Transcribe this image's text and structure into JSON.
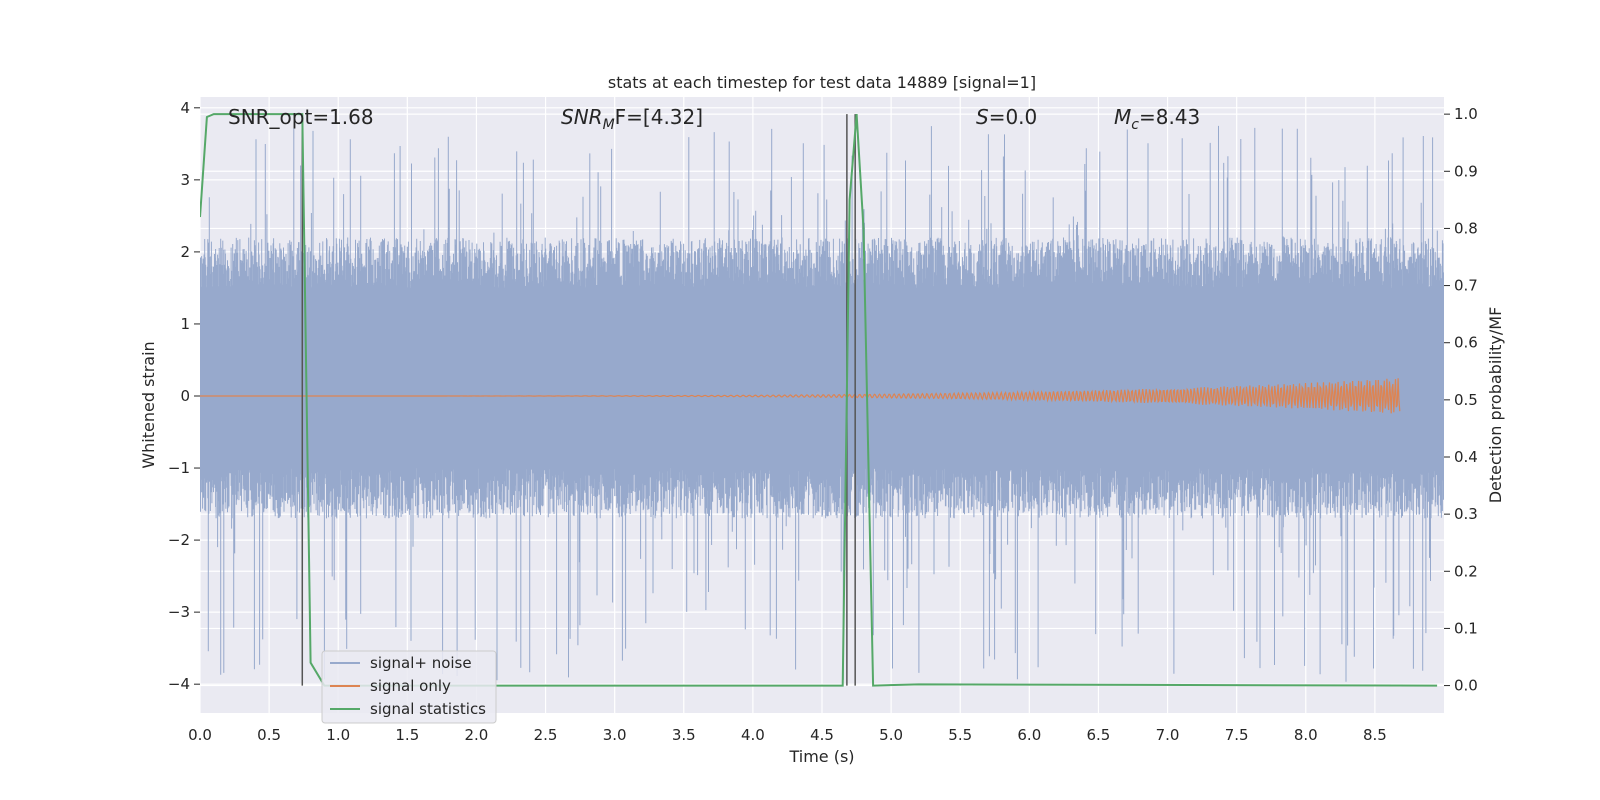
{
  "chart_data": {
    "type": "line",
    "title": "stats at each timestep for test data 14889 [signal=1]",
    "xlabel": "Time (s)",
    "ylabel": "Whitened strain",
    "y2label": "Detection probability/MF",
    "xlim": [
      0.0,
      9.0
    ],
    "ylim": [
      -4.4,
      4.15
    ],
    "y2lim": [
      -0.048,
      1.03
    ],
    "x_ticks": [
      0.0,
      0.5,
      1.0,
      1.5,
      2.0,
      2.5,
      3.0,
      3.5,
      4.0,
      4.5,
      5.0,
      5.5,
      6.0,
      6.5,
      7.0,
      7.5,
      8.0,
      8.5
    ],
    "x_tick_labels": [
      "0.0",
      "0.5",
      "1.0",
      "1.5",
      "2.0",
      "2.5",
      "3.0",
      "3.5",
      "4.0",
      "4.5",
      "5.0",
      "5.5",
      "6.0",
      "6.5",
      "7.0",
      "7.5",
      "8.0",
      "8.5"
    ],
    "y_ticks": [
      4,
      3,
      2,
      1,
      0,
      -1,
      -2,
      -3,
      -4
    ],
    "y_tick_labels": [
      "4",
      "3",
      "2",
      "1",
      "0",
      "−1",
      "−2",
      "−3",
      "−4"
    ],
    "y2_ticks": [
      1.0,
      0.9,
      0.8,
      0.7,
      0.6,
      0.5,
      0.4,
      0.3,
      0.2,
      0.1,
      0.0
    ],
    "y2_tick_labels": [
      "1.0",
      "0.9",
      "0.8",
      "0.7",
      "0.6",
      "0.5",
      "0.4",
      "0.3",
      "0.2",
      "0.1",
      "0.0"
    ],
    "grid": true,
    "legend_position": "lower-left",
    "colors": {
      "noise": "#97a9cc",
      "signal": "#dd8452",
      "stats": "#55a868",
      "vline": "#555555",
      "background": "#eaeaf2",
      "grid": "#ffffff"
    },
    "annotations": {
      "snr_opt": "SNR_opt=1.68",
      "snr_mf_base": "SNR",
      "snr_mf_sub": "M",
      "snr_mf_rest": "F=[4.32]",
      "s_letter": "S",
      "s_rest": "=0.0",
      "mc_letter": "M",
      "mc_sub": "c",
      "mc_rest": "=8.43"
    },
    "series": [
      {
        "name": "signal+ noise",
        "kind": "noise band",
        "typical_range": [
          -1.7,
          2.2
        ],
        "extremes": [
          -4.0,
          3.75
        ]
      },
      {
        "name": "signal only",
        "kind": "chirp",
        "x_end": 8.68,
        "peak_amplitude": 0.25
      },
      {
        "name": "signal statistics",
        "axis": "right",
        "x": [
          0.0,
          0.05,
          0.1,
          0.7,
          0.74,
          0.8,
          0.9,
          4.65,
          4.7,
          4.75,
          4.8,
          4.87,
          5.2,
          8.95
        ],
        "values": [
          0.82,
          0.995,
          1.0,
          1.0,
          1.0,
          0.04,
          0.0,
          0.0,
          0.85,
          1.0,
          0.8,
          0.0,
          0.002,
          0.0
        ]
      }
    ],
    "vertical_lines": [
      0.74,
      4.68,
      4.74
    ]
  },
  "legend": [
    {
      "label": "signal+ noise",
      "color_key": "noise"
    },
    {
      "label": "signal only",
      "color_key": "signal"
    },
    {
      "label": "signal statistics",
      "color_key": "stats"
    }
  ]
}
